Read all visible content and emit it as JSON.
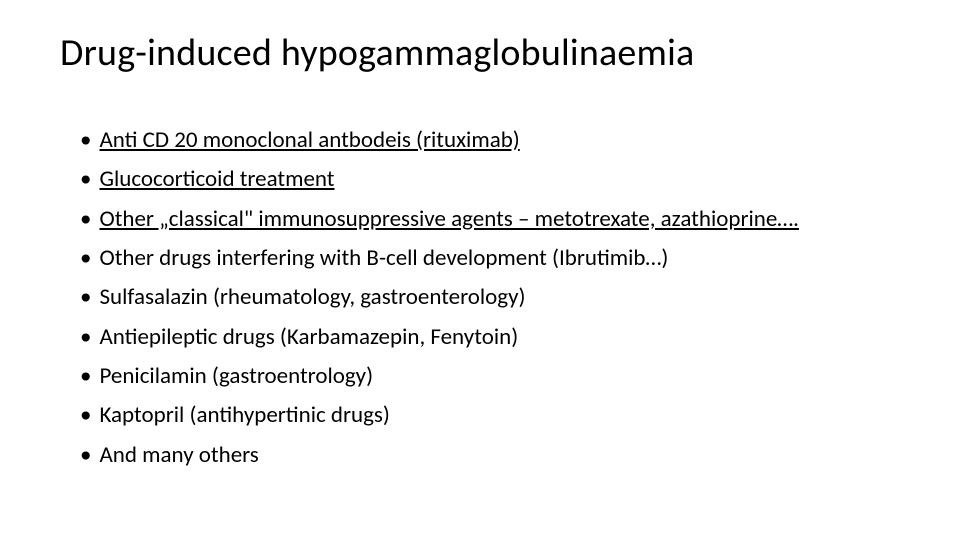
{
  "title": "Drug-induced hypogammaglobulinaemia",
  "items": [
    {
      "text": "Anti CD 20 monoclonal antbodeis (rituximab)",
      "underlined": true
    },
    {
      "text": "Glucocorticoid treatment",
      "underlined": true
    },
    {
      "text": "Other „classical\" immunosuppressive agents – metotrexate, azathioprine….",
      "underlined": true
    },
    {
      "text": "Other drugs interfering with B-cell development (Ibrutimib…)",
      "underlined": false
    },
    {
      "text": "Sulfasalazin (rheumatology, gastroenterology)",
      "underlined": false
    },
    {
      "text": "Antiepileptic drugs (Karbamazepin, Fenytoin)",
      "underlined": false
    },
    {
      "text": "Penicilamin (gastroentrology)",
      "underlined": false
    },
    {
      "text": "Kaptopril (antihypertinic drugs)",
      "underlined": false
    },
    {
      "text": "And many others",
      "underlined": false
    }
  ],
  "colors": {
    "background": "#ffffff",
    "text": "#000000"
  },
  "typography": {
    "title_fontsize_pt": 28,
    "body_fontsize_pt": 17,
    "font_family": "Calibri"
  }
}
